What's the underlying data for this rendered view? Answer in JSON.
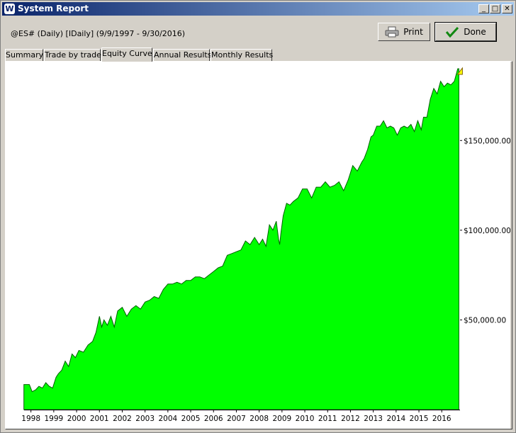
{
  "window": {
    "title": "System Report",
    "icon": "W"
  },
  "controls": {
    "minimize": "_",
    "maximize": "□",
    "close": "✕"
  },
  "header": {
    "subtitle": "@ES# (Daily) [IDaily]  (9/9/1997 - 9/30/2016)"
  },
  "buttons": {
    "print": "Print",
    "done": "Done",
    "print_icon": "printer-icon",
    "done_icon": "checkmark-icon"
  },
  "tabs": [
    {
      "label": "Summary",
      "active": false
    },
    {
      "label": "Trade by trade",
      "active": false
    },
    {
      "label": "Equity Curve",
      "active": true
    },
    {
      "label": "Annual Results",
      "active": false
    },
    {
      "label": "Monthly Results",
      "active": false
    }
  ],
  "colors": {
    "fill": "#00ff00",
    "line": "#006000",
    "titlebar": "#0a246a",
    "marker": "#ffff00"
  },
  "chart_data": {
    "type": "area",
    "xlabel": "",
    "ylabel": "",
    "x_ticks": [
      "1998",
      "1999",
      "2000",
      "2001",
      "2002",
      "2003",
      "2004",
      "2005",
      "2006",
      "2007",
      "2008",
      "2009",
      "2010",
      "2011",
      "2012",
      "2013",
      "2014",
      "2015",
      "2016"
    ],
    "y_ticks": [
      "$50,000.00",
      "$100,000.00",
      "$150,000.00"
    ],
    "y_tick_values": [
      50000,
      100000,
      150000
    ],
    "xlim": [
      1997.7,
      2016.8
    ],
    "ylim": [
      0,
      190000
    ],
    "series": [
      {
        "x": [
          1997.69,
          1997.93,
          1998.05,
          1998.2,
          1998.35,
          1998.5,
          1998.65,
          1998.8,
          1998.95,
          1999.1,
          1999.2,
          1999.35,
          1999.5,
          1999.65,
          1999.8,
          1999.95,
          2000.1,
          2000.3,
          2000.5,
          2000.7,
          2000.85,
          2001.0,
          2001.1,
          2001.2,
          2001.35,
          2001.5,
          2001.65,
          2001.8,
          2002.0,
          2002.2,
          2002.4,
          2002.6,
          2002.8,
          2003.0,
          2003.2,
          2003.4,
          2003.6,
          2003.8,
          2004.0,
          2004.2,
          2004.4,
          2004.6,
          2004.8,
          2005.0,
          2005.2,
          2005.4,
          2005.6,
          2005.8,
          2006.0,
          2006.2,
          2006.4,
          2006.6,
          2006.8,
          2007.0,
          2007.2,
          2007.4,
          2007.6,
          2007.8,
          2008.0,
          2008.15,
          2008.3,
          2008.45,
          2008.6,
          2008.75,
          2008.85,
          2008.9,
          2008.95,
          2009.05,
          2009.2,
          2009.35,
          2009.5,
          2009.7,
          2009.9,
          2010.1,
          2010.3,
          2010.5,
          2010.7,
          2010.9,
          2011.1,
          2011.3,
          2011.5,
          2011.7,
          2011.9,
          2012.1,
          2012.3,
          2012.5,
          2012.6,
          2012.75,
          2012.9,
          2013.0,
          2013.15,
          2013.3,
          2013.45,
          2013.6,
          2013.75,
          2013.9,
          2014.05,
          2014.2,
          2014.35,
          2014.5,
          2014.65,
          2014.8,
          2014.95,
          2015.1,
          2015.2,
          2015.35,
          2015.5,
          2015.65,
          2015.8,
          2015.95,
          2016.1,
          2016.25,
          2016.4,
          2016.55,
          2016.7,
          2016.75
        ],
        "y": [
          14000,
          14000,
          10000,
          11000,
          13000,
          12000,
          15000,
          13000,
          12000,
          18000,
          20000,
          22000,
          27000,
          24000,
          31000,
          29000,
          33000,
          32000,
          36000,
          38000,
          43000,
          52000,
          46000,
          50000,
          47000,
          52000,
          46000,
          55000,
          57000,
          52000,
          56000,
          58000,
          56000,
          60000,
          61000,
          63000,
          62000,
          67000,
          70000,
          70000,
          71000,
          70000,
          72000,
          72000,
          74000,
          74000,
          73000,
          75000,
          77000,
          79000,
          80000,
          86000,
          87000,
          88000,
          89000,
          94000,
          92000,
          96000,
          92000,
          95000,
          91000,
          103000,
          100000,
          105000,
          95000,
          92000,
          98000,
          108000,
          115000,
          114000,
          116000,
          118000,
          123000,
          123000,
          118000,
          124000,
          124000,
          127000,
          124000,
          125000,
          127000,
          122000,
          128000,
          136000,
          133000,
          138000,
          140000,
          145000,
          152000,
          153000,
          158000,
          158000,
          161000,
          157000,
          158000,
          157000,
          153000,
          157000,
          158000,
          157000,
          159000,
          155000,
          161000,
          156000,
          163000,
          163000,
          173000,
          179000,
          176000,
          183000,
          180000,
          182000,
          181000,
          183000,
          190000,
          190000
        ]
      }
    ],
    "marker": {
      "x": 2016.75,
      "y": 190000,
      "shape": "triangle"
    }
  }
}
